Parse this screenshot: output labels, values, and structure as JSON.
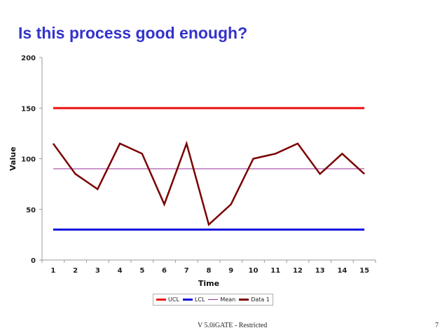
{
  "slide": {
    "title": "Is this process good enough?",
    "footer": "V 5.0iGATE - Restricted",
    "page_number": "7"
  },
  "chart_data": {
    "type": "line",
    "x": [
      1,
      2,
      3,
      4,
      5,
      6,
      7,
      8,
      9,
      10,
      11,
      12,
      13,
      14,
      15
    ],
    "xlabel": "Time",
    "ylabel": "Value",
    "ylim": [
      0,
      200
    ],
    "yticks": [
      0,
      50,
      100,
      150,
      200
    ],
    "grid": false,
    "legend_position": "bottom",
    "series": [
      {
        "name": "UCL",
        "color": "#ee1111",
        "values": [
          150,
          150,
          150,
          150,
          150,
          150,
          150,
          150,
          150,
          150,
          150,
          150,
          150,
          150,
          150
        ]
      },
      {
        "name": "LCL",
        "color": "#1111dd",
        "values": [
          30,
          30,
          30,
          30,
          30,
          30,
          30,
          30,
          30,
          30,
          30,
          30,
          30,
          30,
          30
        ]
      },
      {
        "name": "Mean",
        "color": "#993399",
        "values": [
          90,
          90,
          90,
          90,
          90,
          90,
          90,
          90,
          90,
          90,
          90,
          90,
          90,
          90,
          90
        ]
      },
      {
        "name": "Data 1",
        "color": "#7a0000",
        "values": [
          115,
          85,
          70,
          115,
          105,
          55,
          115,
          35,
          55,
          100,
          105,
          115,
          85,
          105,
          85
        ]
      }
    ]
  }
}
